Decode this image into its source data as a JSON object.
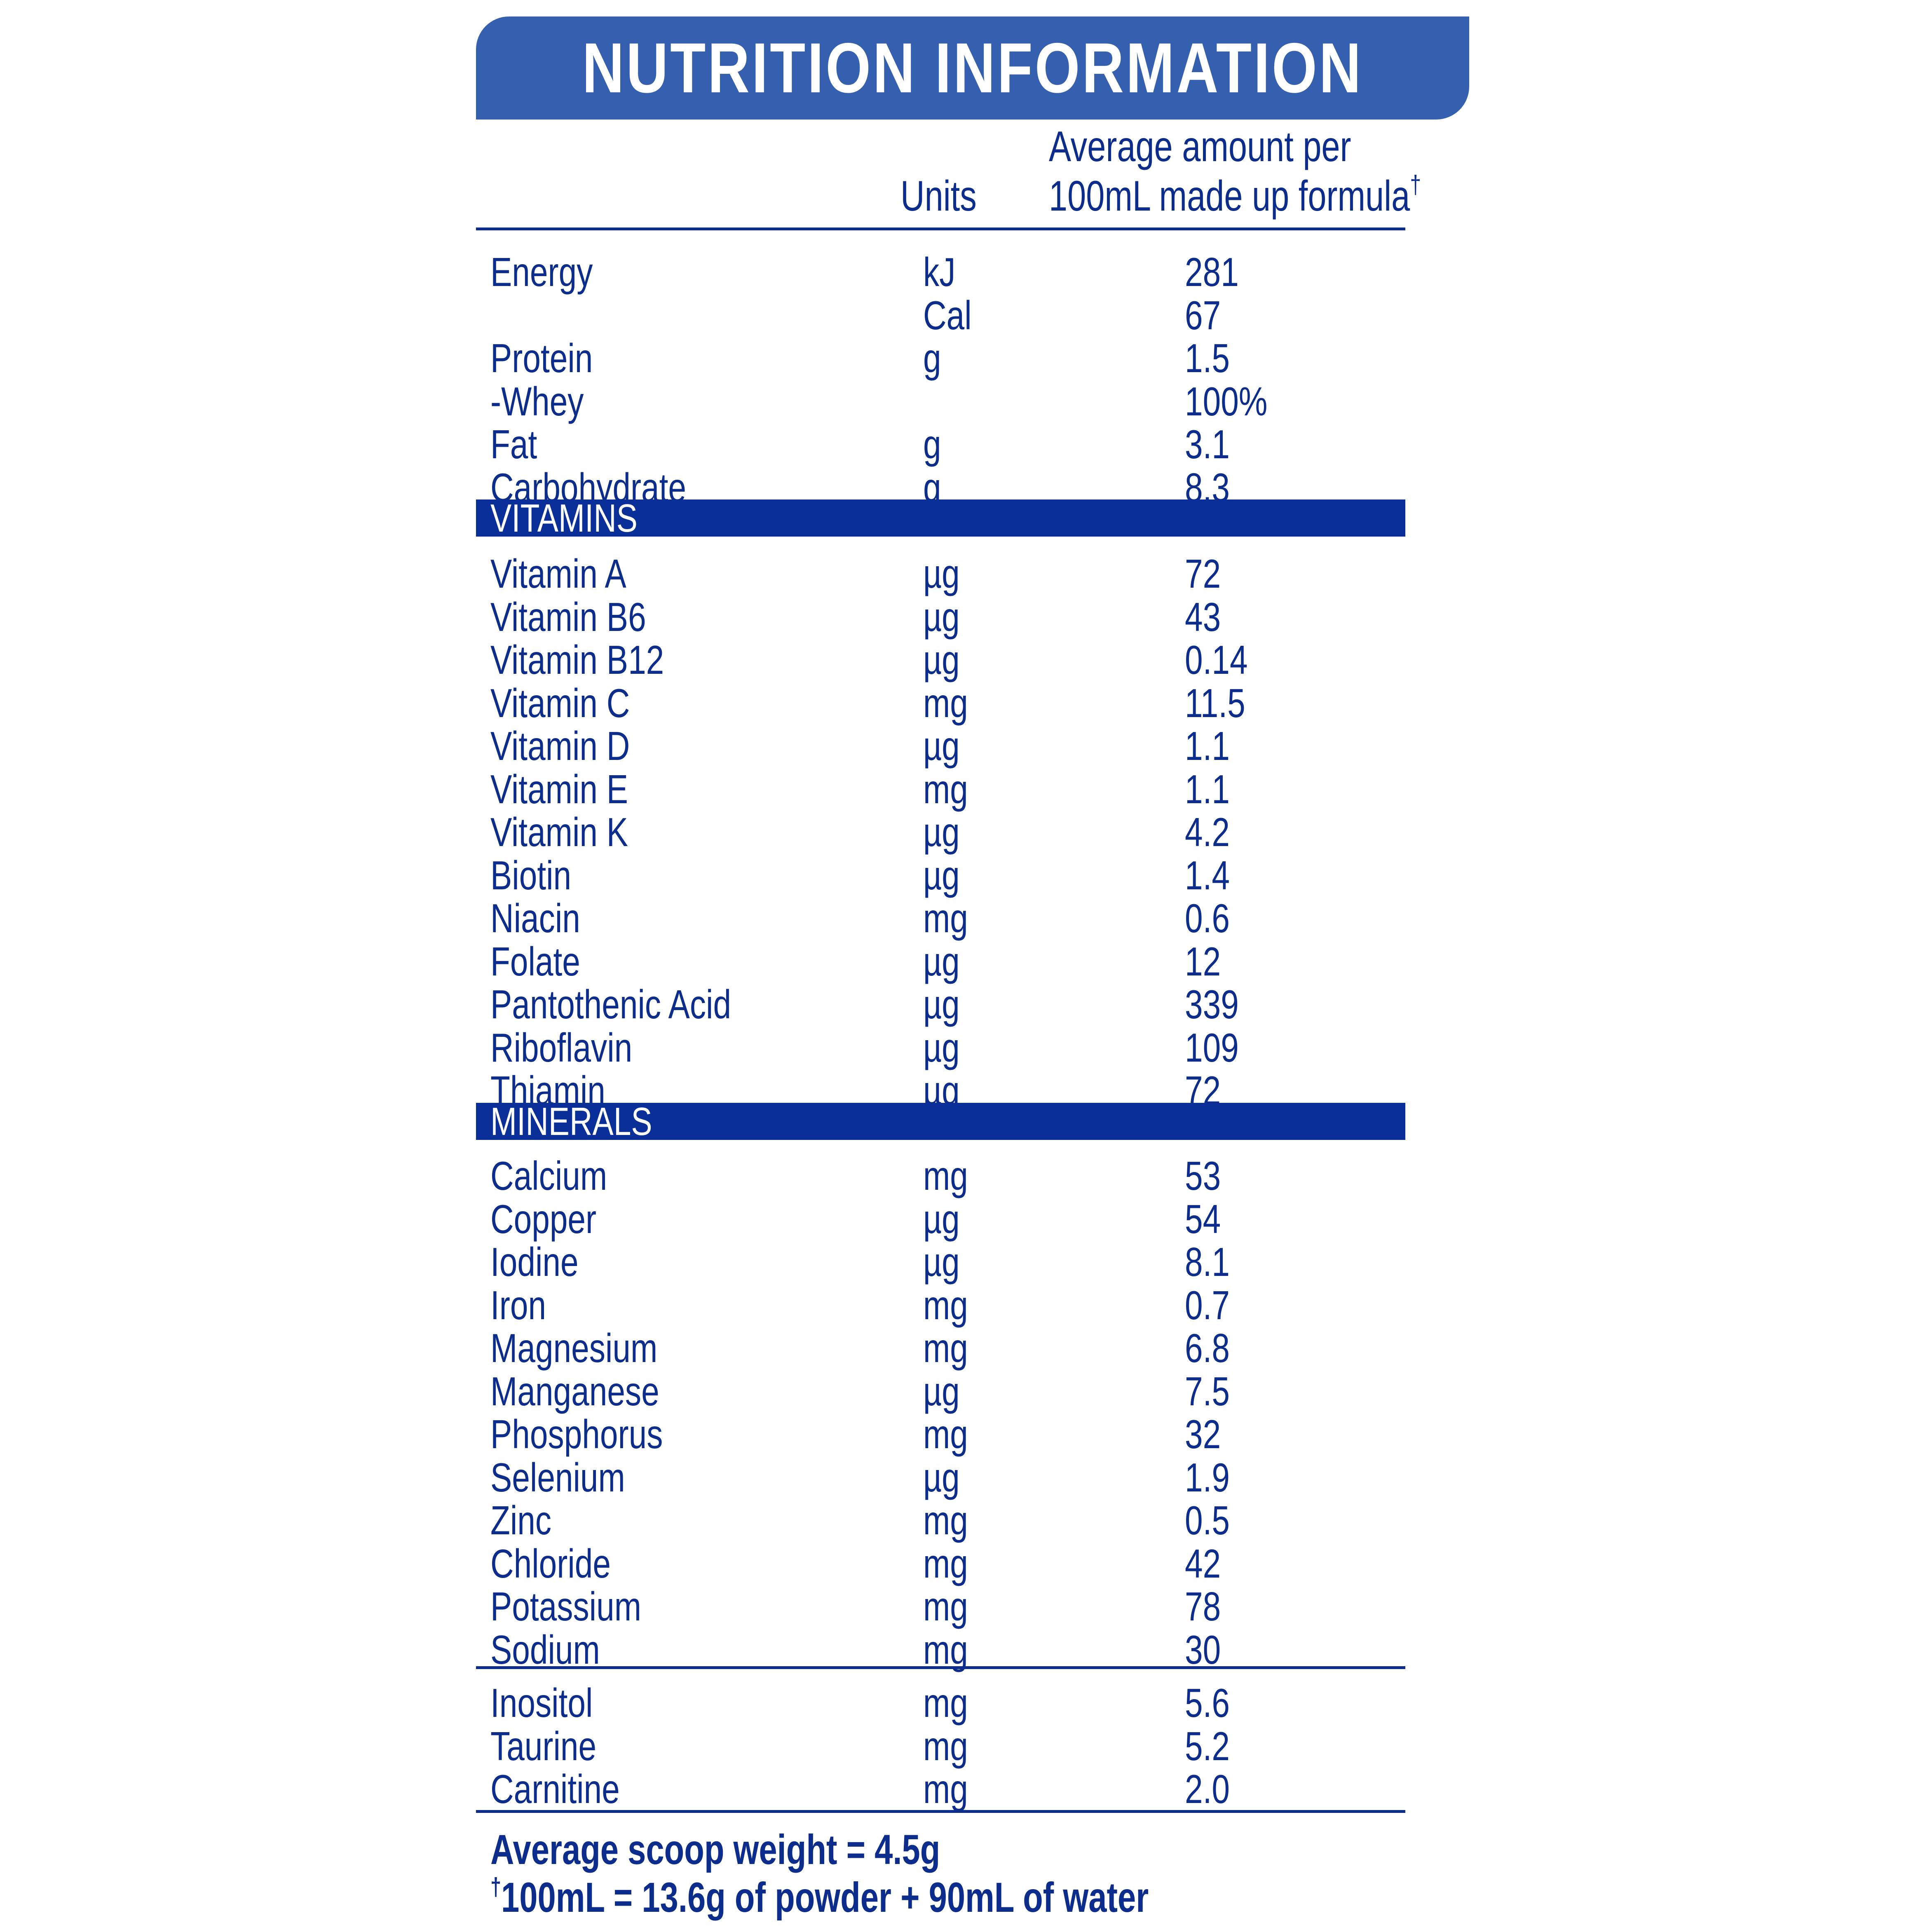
{
  "title": "NUTRITION INFORMATION",
  "header": {
    "units": "Units",
    "amount_line1": "Average amount per",
    "amount_line2": "100mL made up formula",
    "amount_mark": "†"
  },
  "colors": {
    "title_bar": "#3560b0",
    "section_bar": "#0a2f99",
    "text": "#0d2d8c"
  },
  "sections": {
    "macros": [
      {
        "name": "Energy",
        "unit": "kJ",
        "value": "281"
      },
      {
        "name": "",
        "unit": "Cal",
        "value": "67"
      },
      {
        "name": "Protein",
        "unit": "g",
        "value": "1.5"
      },
      {
        "name": " -Whey",
        "unit": "",
        "value": "100%"
      },
      {
        "name": "Fat",
        "unit": "g",
        "value": "3.1"
      },
      {
        "name": "Carbohydrate",
        "unit": "g",
        "value": "8.3"
      }
    ],
    "vitamins_label": "VITAMINS",
    "vitamins": [
      {
        "name": "Vitamin A",
        "unit": "µg",
        "value": "72"
      },
      {
        "name": "Vitamin B6",
        "unit": "µg",
        "value": "43"
      },
      {
        "name": "Vitamin B12",
        "unit": "µg",
        "value": "0.14"
      },
      {
        "name": "Vitamin C",
        "unit": "mg",
        "value": "11.5"
      },
      {
        "name": "Vitamin D",
        "unit": "µg",
        "value": "1.1"
      },
      {
        "name": "Vitamin E",
        "unit": "mg",
        "value": "1.1"
      },
      {
        "name": "Vitamin K",
        "unit": "µg",
        "value": "4.2"
      },
      {
        "name": "Biotin",
        "unit": "µg",
        "value": "1.4"
      },
      {
        "name": "Niacin",
        "unit": "mg",
        "value": "0.6"
      },
      {
        "name": "Folate",
        "unit": "µg",
        "value": "12"
      },
      {
        "name": "Pantothenic Acid",
        "unit": "µg",
        "value": "339"
      },
      {
        "name": "Riboflavin",
        "unit": "µg",
        "value": "109"
      },
      {
        "name": "Thiamin",
        "unit": "µg",
        "value": "72"
      }
    ],
    "minerals_label": "MINERALS",
    "minerals": [
      {
        "name": "Calcium",
        "unit": "mg",
        "value": "53"
      },
      {
        "name": "Copper",
        "unit": "µg",
        "value": "54"
      },
      {
        "name": "Iodine",
        "unit": "µg",
        "value": "8.1"
      },
      {
        "name": "Iron",
        "unit": "mg",
        "value": "0.7"
      },
      {
        "name": "Magnesium",
        "unit": "mg",
        "value": "6.8"
      },
      {
        "name": "Manganese",
        "unit": "µg",
        "value": "7.5"
      },
      {
        "name": "Phosphorus",
        "unit": "mg",
        "value": "32"
      },
      {
        "name": "Selenium",
        "unit": "µg",
        "value": "1.9"
      },
      {
        "name": "Zinc",
        "unit": "mg",
        "value": "0.5"
      },
      {
        "name": "Chloride",
        "unit": "mg",
        "value": "42"
      },
      {
        "name": "Potassium",
        "unit": "mg",
        "value": "78"
      },
      {
        "name": "Sodium",
        "unit": "mg",
        "value": "30"
      }
    ],
    "others": [
      {
        "name": "Inositol",
        "unit": "mg",
        "value": "5.6"
      },
      {
        "name": "Taurine",
        "unit": "mg",
        "value": "5.2"
      },
      {
        "name": "Carnitine",
        "unit": "mg",
        "value": "2.0"
      }
    ]
  },
  "footnotes": {
    "scoop": "Average scoop weight = 4.5g",
    "mark": "†",
    "prep": "100mL = 13.6g of powder + 90mL of water"
  }
}
